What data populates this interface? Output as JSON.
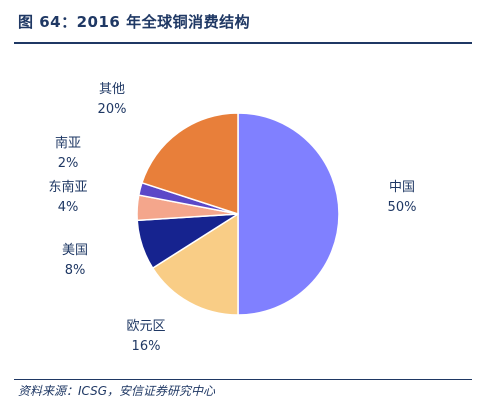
{
  "figure": {
    "title": "图 64：2016 年全球铜消费结构",
    "source": "资料来源：ICSG，安信证券研究中心"
  },
  "chart_data": {
    "type": "pie",
    "title": "",
    "slices": [
      {
        "name": "中国",
        "label": "50%",
        "value": 50,
        "color": "#8080ff"
      },
      {
        "name": "欧元区",
        "label": "16%",
        "value": 16,
        "color": "#f9cd86"
      },
      {
        "name": "美国",
        "label": "8%",
        "value": 8,
        "color": "#16238f"
      },
      {
        "name": "东南亚",
        "label": "4%",
        "value": 4,
        "color": "#f4a68c"
      },
      {
        "name": "南亚",
        "label": "2%",
        "value": 2,
        "color": "#5b48c8"
      },
      {
        "name": "其他",
        "label": "20%",
        "value": 20,
        "color": "#e87f3a"
      }
    ],
    "start_angle": "12 o'clock",
    "direction": "clockwise",
    "legend": "none"
  }
}
